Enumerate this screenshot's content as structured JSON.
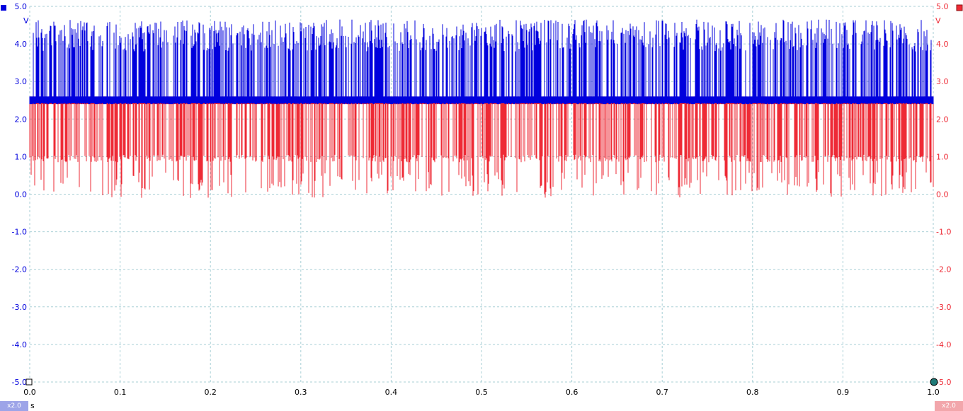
{
  "channels": {
    "a": {
      "color": "#0000dd",
      "unit": "V",
      "scale_label": "x2.0",
      "badge_color": "#9da4e8"
    },
    "b": {
      "color": "#ee2a35",
      "unit": "V",
      "scale_label": "x2.0",
      "badge_color": "#f2a6ab"
    }
  },
  "x_unit": "s",
  "icons": {
    "left_channel": "blue-square-icon",
    "right_channel": "red-square-icon",
    "trigger": "trigger-marker-icon"
  },
  "chart_data": {
    "type": "line",
    "x_range": [
      0.0,
      1.0
    ],
    "x_ticks": [
      "0.0",
      "0.1",
      "0.2",
      "0.3",
      "0.4",
      "0.5",
      "0.6",
      "0.7",
      "0.8",
      "0.9",
      "1.0"
    ],
    "y_range": [
      -5.0,
      5.0
    ],
    "y_ticks_left": [
      "5.0",
      "4.0",
      "3.0",
      "2.0",
      "1.0",
      "0.0",
      "-1.0",
      "-2.0",
      "-3.0",
      "-4.0",
      "-5.0"
    ],
    "y_ticks_right": [
      "5.0",
      "4.0",
      "3.0",
      "2.0",
      "1.0",
      "0.0",
      "-1.0",
      "-2.0",
      "-3.0",
      "-4.0",
      "-5.0"
    ],
    "y_tick_values": [
      5,
      4,
      3,
      2,
      1,
      0,
      -1,
      -2,
      -3,
      -4,
      -5
    ],
    "x_tick_values": [
      0,
      0.1,
      0.2,
      0.3,
      0.4,
      0.5,
      0.6,
      0.7,
      0.8,
      0.9,
      1.0
    ],
    "grid": true,
    "series": [
      {
        "channel": "a",
        "color": "#0000dd",
        "baseline": 2.5,
        "pulse_high_range": [
          3.8,
          4.65
        ],
        "pulse_direction": "up"
      },
      {
        "channel": "b",
        "color": "#ee2a35",
        "baseline": 2.5,
        "pulse_low_range": [
          -0.1,
          1.0
        ],
        "pulse_direction": "down"
      }
    ]
  }
}
